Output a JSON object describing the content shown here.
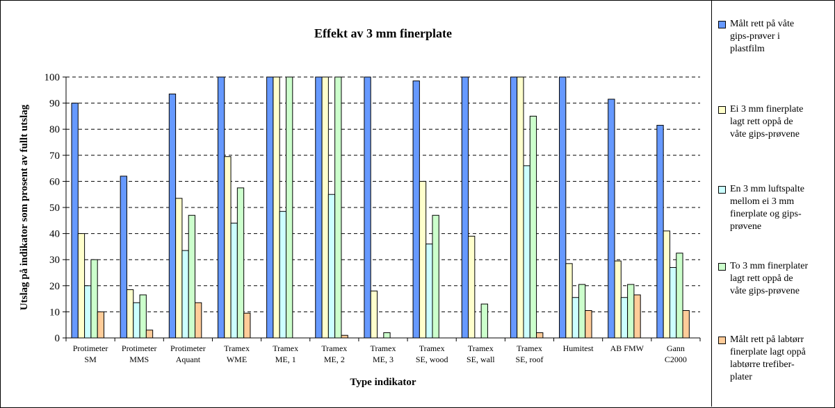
{
  "chart_data": {
    "type": "bar",
    "title": "Effekt av 3 mm finerplate",
    "xlabel": "Type indikator",
    "ylabel": "Utslag på indikator som prosent av fullt utslag",
    "ylim": [
      0,
      100
    ],
    "yticks": [
      0,
      10,
      20,
      30,
      40,
      50,
      60,
      70,
      80,
      90,
      100
    ],
    "grid": "horizontal-dashed",
    "legend_position": "right",
    "categories": [
      [
        "Protimeter",
        "SM"
      ],
      [
        "Protimeter",
        "MMS"
      ],
      [
        "Protimeter",
        "Aquant"
      ],
      [
        "Tramex",
        "WME"
      ],
      [
        "Tramex",
        "ME, 1"
      ],
      [
        "Tramex",
        "ME, 2"
      ],
      [
        "Tramex",
        "ME, 3"
      ],
      [
        "Tramex",
        "SE, wood"
      ],
      [
        "Tramex",
        "SE, wall"
      ],
      [
        "Tramex",
        "SE, roof"
      ],
      [
        "Humitest"
      ],
      [
        "AB FMW"
      ],
      [
        "Gann",
        "C2000"
      ]
    ],
    "series": [
      {
        "name": [
          "Målt rett på våte",
          "gips-prøver i",
          "plastfilm"
        ],
        "color": "#6699ff",
        "values": [
          90,
          62,
          93.5,
          100,
          100,
          100,
          100,
          98.5,
          100,
          100,
          100,
          91.5,
          81.5
        ]
      },
      {
        "name": [
          "Ei 3 mm finerplate",
          "lagt rett oppå de",
          "våte gips-prøvene"
        ],
        "color": "#ffffcc",
        "values": [
          40,
          18.5,
          53.5,
          69.5,
          100,
          100,
          18,
          60,
          39,
          100,
          28.5,
          29.5,
          41
        ]
      },
      {
        "name": [
          "En 3 mm luftspalte",
          "mellom ei 3 mm",
          "finerplate og gips-",
          "prøvene"
        ],
        "color": "#ccffff",
        "values": [
          20,
          13.5,
          33.5,
          44,
          48.5,
          55,
          0,
          36,
          0,
          66,
          15.5,
          15.5,
          27
        ]
      },
      {
        "name": [
          "To 3 mm finerplater",
          "lagt rett oppå de",
          "våte gips-prøvene"
        ],
        "color": "#ccffcc",
        "values": [
          30,
          16.5,
          47,
          57.5,
          100,
          100,
          2,
          47,
          13,
          85,
          20.5,
          20.5,
          32.5
        ]
      },
      {
        "name": [
          "Målt rett på labtørr",
          "finerplate lagt oppå",
          "labtørre trefiber-",
          "plater"
        ],
        "color": "#ffcc99",
        "values": [
          10,
          3,
          13.5,
          9.5,
          0,
          1,
          0,
          0,
          0,
          2,
          10.5,
          16.5,
          10.5
        ]
      }
    ]
  }
}
